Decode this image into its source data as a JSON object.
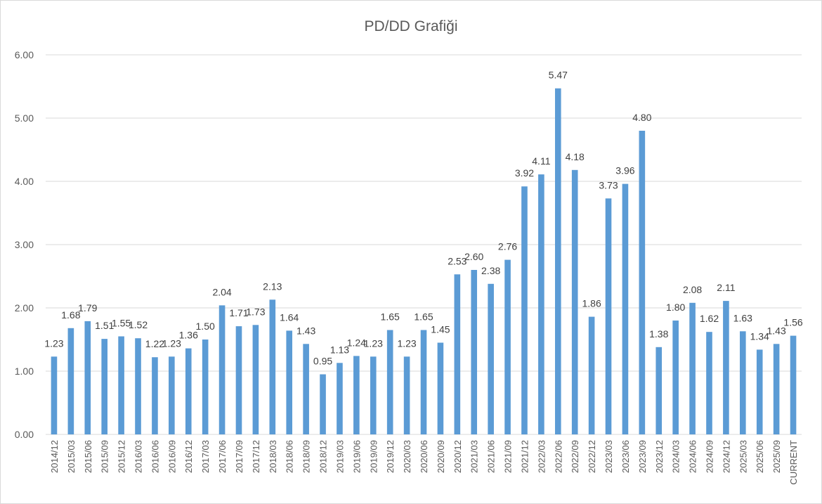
{
  "chart_data": {
    "type": "bar",
    "title": "PD/DD Grafiği",
    "xlabel": "",
    "ylabel": "",
    "ylim": [
      0,
      6
    ],
    "yticks": [
      "0.00",
      "1.00",
      "2.00",
      "3.00",
      "4.00",
      "5.00",
      "6.00"
    ],
    "grid": true,
    "legend": "none",
    "bar_color": "#5b9bd5",
    "categories": [
      "2014/12",
      "2015/03",
      "2015/06",
      "2015/09",
      "2015/12",
      "2016/03",
      "2016/06",
      "2016/09",
      "2016/12",
      "2017/03",
      "2017/06",
      "2017/09",
      "2017/12",
      "2018/03",
      "2018/06",
      "2018/09",
      "2018/12",
      "2019/03",
      "2019/06",
      "2019/09",
      "2019/12",
      "2020/03",
      "2020/06",
      "2020/09",
      "2020/12",
      "2021/03",
      "2021/06",
      "2021/09",
      "2021/12",
      "2022/03",
      "2022/06",
      "2022/09",
      "2022/12",
      "2023/03",
      "2023/06",
      "2023/09",
      "2023/12",
      "2024/03",
      "2024/06",
      "2024/09",
      "2024/12",
      "2025/03",
      "2025/06",
      "2025/09",
      "CURRENT"
    ],
    "values": [
      1.23,
      1.68,
      1.79,
      1.51,
      1.55,
      1.52,
      1.22,
      1.23,
      1.36,
      1.5,
      2.04,
      1.71,
      1.73,
      2.13,
      1.64,
      1.43,
      0.95,
      1.13,
      1.24,
      1.23,
      1.65,
      1.23,
      1.65,
      1.45,
      2.53,
      2.6,
      2.38,
      2.76,
      3.92,
      4.11,
      5.47,
      4.18,
      1.86,
      3.73,
      3.96,
      4.8,
      1.38,
      1.8,
      2.08,
      1.62,
      2.11,
      1.63,
      1.34,
      1.43,
      1.56
    ],
    "data_labels": [
      "1.23",
      "1.68",
      "1.79",
      "1.51",
      "1.55",
      "1.52",
      "1.22",
      "1.23",
      "1.36",
      "1.50",
      "2.04",
      "1.71",
      "1.73",
      "2.13",
      "1.64",
      "1.43",
      "0.95",
      "1.13",
      "1.24",
      "1.23",
      "1.65",
      "1.23",
      "1.65",
      "1.45",
      "2.53",
      "2.60",
      "2.38",
      "2.76",
      "3.92",
      "4.11",
      "5.47",
      "4.18",
      "1.86",
      "3.73",
      "3.96",
      "4.80",
      "1.38",
      "1.80",
      "2.08",
      "1.62",
      "2.11",
      "1.63",
      "1.34",
      "1.43",
      "1.56"
    ]
  }
}
